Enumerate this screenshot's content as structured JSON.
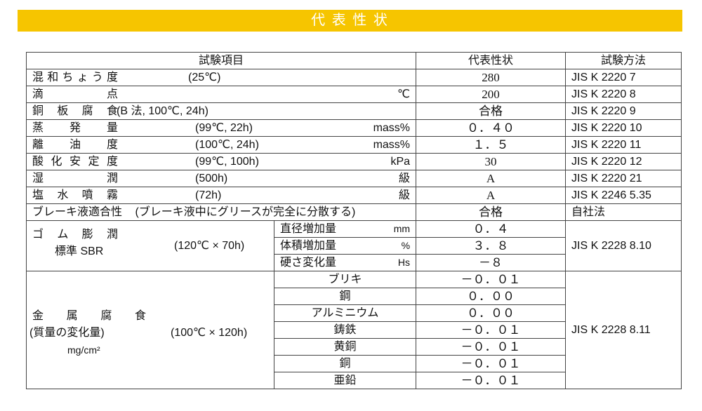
{
  "banner": {
    "title": "代 表 性 状",
    "color": "#f6c500"
  },
  "headers": {
    "item": "試験項目",
    "value": "代表性状",
    "method": "試験方法"
  },
  "rows": [
    {
      "name": "混和ちょう度",
      "condition": "(25℃)",
      "unit": "",
      "value": "280",
      "method": "JIS K 2220 7"
    },
    {
      "name": "滴点",
      "condition": "",
      "unit": "℃",
      "value": "200",
      "method": "JIS K 2220 8"
    },
    {
      "name": "銅板腐食",
      "condition": "(B 法, 100℃, 24h)",
      "unit": "",
      "value": "合格",
      "method": "JIS K 2220 9"
    },
    {
      "name": "蒸発量",
      "condition": "(99℃, 22h)",
      "unit": "mass%",
      "value": "０．４０",
      "method": "JIS K 2220 10"
    },
    {
      "name": "離油度",
      "condition": "(100℃, 24h)",
      "unit": "mass%",
      "value": "１．５",
      "method": "JIS K 2220 11"
    },
    {
      "name": "酸化安定度",
      "condition": "(99℃, 100h)",
      "unit": "kPa",
      "value": "30",
      "method": "JIS K 2220 12"
    },
    {
      "name": "湿潤",
      "condition": "(500h)",
      "unit": "級",
      "value": "A",
      "method": "JIS K 2220 21"
    },
    {
      "name": "塩水噴霧",
      "condition": "(72h)",
      "unit": "級",
      "value": "A",
      "method": "JIS K 2246 5.35"
    }
  ],
  "brake": {
    "name": "ブレーキ液適合性",
    "condition": "(ブレーキ液中にグリースが完全に分散する)",
    "value": "合格",
    "method": "自社法"
  },
  "rubber": {
    "name": "ゴ ム 膨 潤",
    "name2": "標準 SBR",
    "condition": "(120℃ × 70h)",
    "method": "JIS K 2228 8.10",
    "items": [
      {
        "label": "直径増加量",
        "unit": "mm",
        "value": "０．４"
      },
      {
        "label": "体積増加量",
        "unit": "%",
        "value": "３．８"
      },
      {
        "label": "硬さ変化量",
        "unit": "Hs",
        "value": "－８"
      }
    ]
  },
  "metal": {
    "name": "金 属 腐 食",
    "name2": "(質量の変化量)",
    "unit": "mg/cm²",
    "condition": "(100℃ × 120h)",
    "method": "JIS K 2228 8.11",
    "items": [
      {
        "label": "ブリキ",
        "value": "－０．０１"
      },
      {
        "label": "鋼",
        "value": "０．００"
      },
      {
        "label": "アルミニウム",
        "value": "０．００"
      },
      {
        "label": "鋳鉄",
        "value": "－０．０１"
      },
      {
        "label": "黄銅",
        "value": "－０．０１"
      },
      {
        "label": "銅",
        "value": "－０．０１"
      },
      {
        "label": "亜鉛",
        "value": "－０．０１"
      }
    ]
  }
}
